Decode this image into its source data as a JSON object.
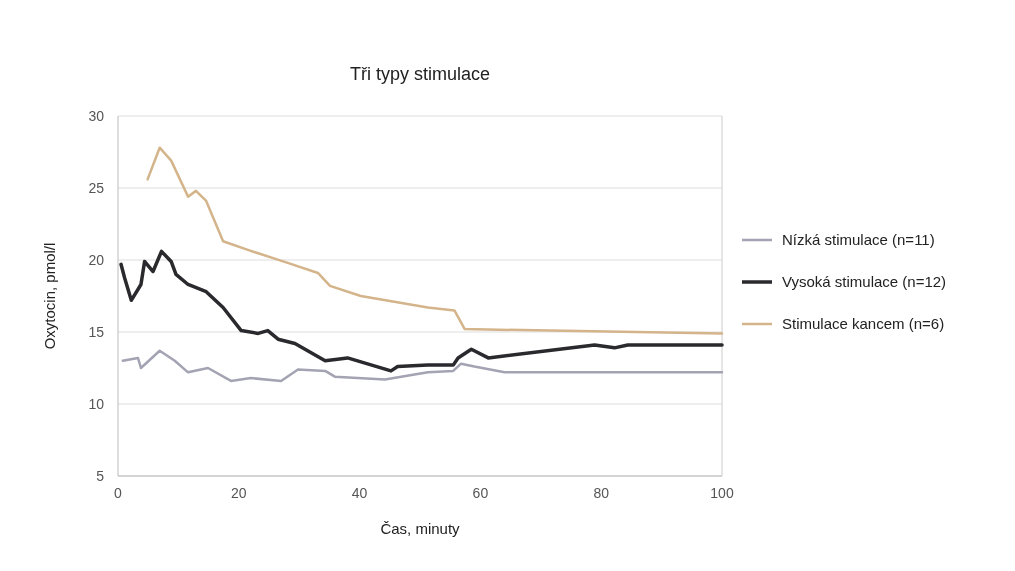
{
  "chart_data": {
    "type": "line",
    "title": "Tři typy stimulace",
    "xlabel": "Čas, minuty",
    "ylabel": "Oxytocin, pmol/l",
    "xlim": [
      0,
      100
    ],
    "xticks": [
      0,
      20,
      40,
      60,
      80,
      100
    ],
    "ylim": [
      5,
      30
    ],
    "yticks": [
      5,
      10,
      15,
      20,
      25,
      30
    ],
    "grid": "y",
    "legend": "right",
    "line_style": "solid",
    "marker": "none",
    "series": [
      {
        "name": "Nízká stimulace (n=11)",
        "color": "#a3a3b3",
        "x": [
          0.8,
          3.3,
          3.8,
          6.9,
          9.4,
          11.6,
          14.9,
          18.7,
          22,
          27,
          29.8,
          34.3,
          35.9,
          44.2,
          51.3,
          55.5,
          56.8,
          59,
          64,
          100
        ],
        "values": [
          13,
          13.2,
          12.5,
          13.7,
          13,
          12.2,
          12.5,
          11.6,
          11.8,
          11.6,
          12.4,
          12.3,
          11.9,
          11.7,
          12.2,
          12.3,
          12.8,
          12.6,
          12.2,
          12.2
        ]
      },
      {
        "name": "Vysoká stimulace (n=12)",
        "color": "#2a2a2e",
        "x": [
          0.5,
          1.1,
          2.2,
          3.8,
          4.4,
          5.8,
          7.2,
          8.8,
          9.6,
          11.6,
          14.6,
          17.4,
          20.4,
          23.2,
          24.8,
          26.5,
          29.3,
          34.3,
          38,
          45.2,
          46.3,
          51.3,
          55.5,
          56.3,
          58.5,
          61.3,
          78.9,
          82.2,
          84.4,
          100
        ],
        "values": [
          19.7,
          18.75,
          17.2,
          18.3,
          19.9,
          19.2,
          20.6,
          19.9,
          19,
          18.3,
          17.8,
          16.7,
          15.1,
          14.9,
          15.1,
          14.5,
          14.2,
          13,
          13.2,
          12.3,
          12.6,
          12.7,
          12.7,
          13.2,
          13.8,
          13.2,
          14.1,
          13.9,
          14.1,
          14.1
        ]
      },
      {
        "name": "Stimulace kancem (n=6)",
        "color": "#d4b48a",
        "x": [
          4.9,
          6.9,
          8.8,
          11.6,
          12.9,
          14.6,
          17.4,
          21.5,
          28.1,
          33.1,
          35.1,
          40.2,
          51.3,
          55.7,
          57.4,
          100
        ],
        "values": [
          25.6,
          27.8,
          26.9,
          24.4,
          24.8,
          24.1,
          21.3,
          20.7,
          19.8,
          19.1,
          18.2,
          17.5,
          16.7,
          16.5,
          15.2,
          14.9
        ]
      }
    ]
  }
}
